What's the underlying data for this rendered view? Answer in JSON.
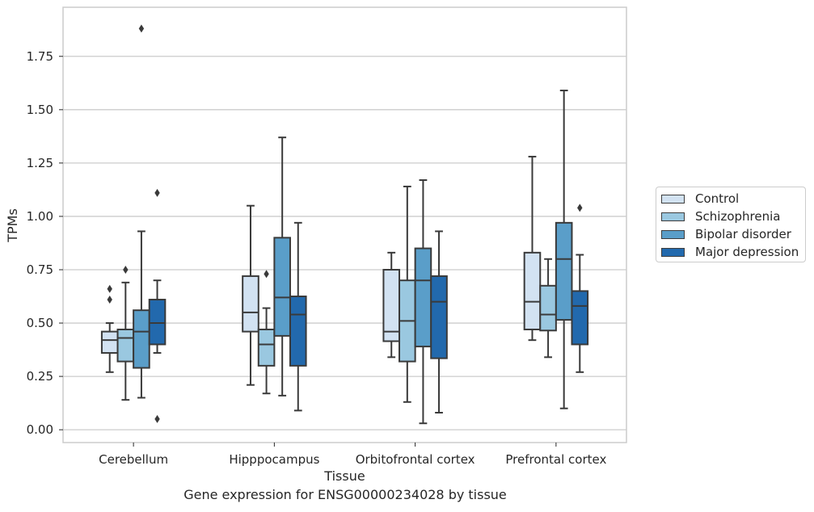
{
  "chart_data": {
    "type": "box",
    "xlabel": "Tissue",
    "ylabel": "TPMs",
    "caption": "Gene expression for ENSG00000234028 by tissue",
    "categories": [
      "Cerebellum",
      "Hipppocampus",
      "Orbitofrontal cortex",
      "Prefrontal cortex"
    ],
    "ylim": [
      -0.06,
      1.98
    ],
    "yticks": [
      "0.00",
      "0.25",
      "0.50",
      "0.75",
      "1.00",
      "1.25",
      "1.50",
      "1.75"
    ],
    "grid": true,
    "legend_position": "right",
    "series": [
      {
        "name": "Control",
        "color": "#d2e2f2",
        "boxes": [
          {
            "whislo": 0.27,
            "q1": 0.36,
            "med": 0.42,
            "q3": 0.46,
            "whishi": 0.5,
            "fliers": [
              0.61,
              0.66
            ]
          },
          {
            "whislo": 0.21,
            "q1": 0.46,
            "med": 0.55,
            "q3": 0.72,
            "whishi": 1.05,
            "fliers": []
          },
          {
            "whislo": 0.34,
            "q1": 0.415,
            "med": 0.46,
            "q3": 0.75,
            "whishi": 0.83,
            "fliers": []
          },
          {
            "whislo": 0.42,
            "q1": 0.47,
            "med": 0.6,
            "q3": 0.83,
            "whishi": 1.28,
            "fliers": []
          }
        ]
      },
      {
        "name": "Schizophrenia",
        "color": "#9ac8e0",
        "boxes": [
          {
            "whislo": 0.14,
            "q1": 0.32,
            "med": 0.43,
            "q3": 0.47,
            "whishi": 0.69,
            "fliers": [
              0.75
            ]
          },
          {
            "whislo": 0.17,
            "q1": 0.3,
            "med": 0.4,
            "q3": 0.47,
            "whishi": 0.57,
            "fliers": [
              0.73
            ]
          },
          {
            "whislo": 0.13,
            "q1": 0.32,
            "med": 0.51,
            "q3": 0.7,
            "whishi": 1.14,
            "fliers": []
          },
          {
            "whislo": 0.34,
            "q1": 0.465,
            "med": 0.54,
            "q3": 0.675,
            "whishi": 0.8,
            "fliers": []
          }
        ]
      },
      {
        "name": "Bipolar disorder",
        "color": "#5a9ec9",
        "boxes": [
          {
            "whislo": 0.15,
            "q1": 0.29,
            "med": 0.46,
            "q3": 0.56,
            "whishi": 0.93,
            "fliers": [
              1.88
            ]
          },
          {
            "whislo": 0.16,
            "q1": 0.44,
            "med": 0.62,
            "q3": 0.9,
            "whishi": 1.37,
            "fliers": []
          },
          {
            "whislo": 0.03,
            "q1": 0.39,
            "med": 0.7,
            "q3": 0.85,
            "whishi": 1.17,
            "fliers": []
          },
          {
            "whislo": 0.1,
            "q1": 0.515,
            "med": 0.8,
            "q3": 0.97,
            "whishi": 1.59,
            "fliers": []
          }
        ]
      },
      {
        "name": "Major depression",
        "color": "#2269ad",
        "boxes": [
          {
            "whislo": 0.36,
            "q1": 0.4,
            "med": 0.5,
            "q3": 0.61,
            "whishi": 0.7,
            "fliers": [
              0.05,
              1.11
            ]
          },
          {
            "whislo": 0.09,
            "q1": 0.3,
            "med": 0.54,
            "q3": 0.625,
            "whishi": 0.97,
            "fliers": []
          },
          {
            "whislo": 0.08,
            "q1": 0.335,
            "med": 0.6,
            "q3": 0.72,
            "whishi": 0.93,
            "fliers": []
          },
          {
            "whislo": 0.27,
            "q1": 0.4,
            "med": 0.58,
            "q3": 0.65,
            "whishi": 0.82,
            "fliers": [
              1.04
            ]
          }
        ]
      }
    ]
  }
}
